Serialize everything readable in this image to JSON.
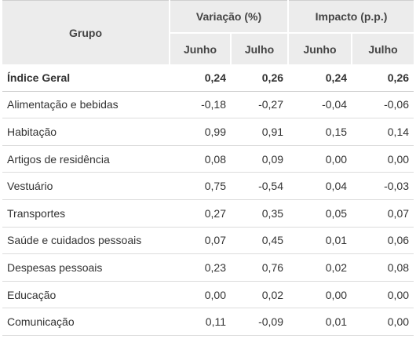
{
  "chart_data": {
    "type": "table",
    "header": {
      "group_label": "Grupo",
      "variation_label": "Variação (%)",
      "impact_label": "Impacto (p.p.)",
      "months": [
        "Junho",
        "Julho",
        "Junho",
        "Julho"
      ]
    },
    "rows": [
      {
        "label": "Índice Geral",
        "values": [
          "0,24",
          "0,26",
          "0,24",
          "0,26"
        ]
      },
      {
        "label": "Alimentação e bebidas",
        "values": [
          "-0,18",
          "-0,27",
          "-0,04",
          "-0,06"
        ]
      },
      {
        "label": "Habitação",
        "values": [
          "0,99",
          "0,91",
          "0,15",
          "0,14"
        ]
      },
      {
        "label": "Artigos de residência",
        "values": [
          "0,08",
          "0,09",
          "0,00",
          "0,00"
        ]
      },
      {
        "label": "Vestuário",
        "values": [
          "0,75",
          "-0,54",
          "0,04",
          "-0,03"
        ]
      },
      {
        "label": "Transportes",
        "values": [
          "0,27",
          "0,35",
          "0,05",
          "0,07"
        ]
      },
      {
        "label": "Saúde e cuidados pessoais",
        "values": [
          "0,07",
          "0,45",
          "0,01",
          "0,06"
        ]
      },
      {
        "label": "Despesas pessoais",
        "values": [
          "0,23",
          "0,76",
          "0,02",
          "0,08"
        ]
      },
      {
        "label": "Educação",
        "values": [
          "0,00",
          "0,02",
          "0,00",
          "0,00"
        ]
      },
      {
        "label": "Comunicação",
        "values": [
          "0,11",
          "-0,09",
          "0,01",
          "0,00"
        ]
      }
    ]
  }
}
